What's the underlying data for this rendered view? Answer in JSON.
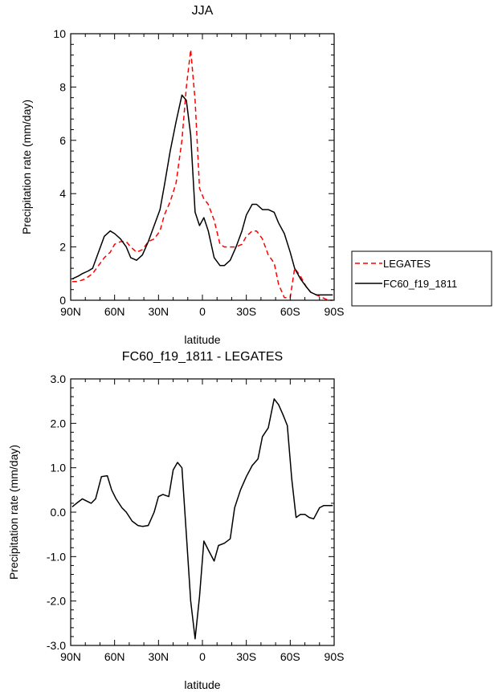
{
  "chart_data": [
    {
      "type": "line",
      "title": "JJA",
      "xlabel": "latitude",
      "ylabel": "Precipitation rate (mm/day)",
      "xlim": [
        90,
        -90
      ],
      "ylim": [
        0,
        10
      ],
      "x_ticks": [
        90,
        60,
        30,
        0,
        -30,
        -60,
        -90
      ],
      "x_tick_labels": [
        "90N",
        "60N",
        "30N",
        "0",
        "30S",
        "60S",
        "90S"
      ],
      "y_ticks": [
        0,
        2,
        4,
        6,
        8,
        10
      ],
      "y_tick_labels": [
        "0",
        "2",
        "4",
        "6",
        "8",
        "10"
      ],
      "legend_placement": "outside-right",
      "series": [
        {
          "name": "LEGATES",
          "color": "#ff0000",
          "dash": true,
          "x": [
            89,
            85,
            80,
            75,
            71,
            67,
            63,
            60,
            56,
            52,
            49,
            45,
            41,
            37,
            33,
            29,
            26,
            22,
            18,
            14,
            11,
            8,
            5,
            2,
            -1,
            -4,
            -8,
            -12,
            -15,
            -19,
            -23,
            -27,
            -30,
            -34,
            -37,
            -41,
            -45,
            -49,
            -52,
            -56,
            -60,
            -63,
            -67,
            -71,
            -74,
            -78,
            -82,
            -86,
            -89
          ],
          "y": [
            0.7,
            0.7,
            0.8,
            1.0,
            1.3,
            1.6,
            1.8,
            2.1,
            2.2,
            2.2,
            2.0,
            1.8,
            1.9,
            2.2,
            2.3,
            2.6,
            3.2,
            3.7,
            4.4,
            6.0,
            8.0,
            9.4,
            7.5,
            4.2,
            3.8,
            3.6,
            3.0,
            2.1,
            2.0,
            2.0,
            2.0,
            2.1,
            2.4,
            2.6,
            2.6,
            2.3,
            1.7,
            1.4,
            0.6,
            0.1,
            0.1,
            1.2,
            0.9,
            0.5,
            0.3,
            0.2,
            0.1,
            0.0,
            0.0
          ]
        },
        {
          "name": "FC60_f19_1811",
          "color": "#000000",
          "dash": false,
          "x": [
            89,
            85,
            82,
            78,
            75,
            71,
            67,
            63,
            60,
            56,
            52,
            49,
            45,
            41,
            37,
            33,
            29,
            26,
            22,
            18,
            14,
            11,
            8,
            5,
            2,
            -1,
            -4,
            -8,
            -12,
            -15,
            -19,
            -23,
            -27,
            -30,
            -34,
            -37,
            -41,
            -45,
            -49,
            -52,
            -56,
            -60,
            -63,
            -67,
            -71,
            -74,
            -78,
            -82,
            -86,
            -89
          ],
          "y": [
            0.8,
            0.9,
            1.0,
            1.1,
            1.2,
            1.8,
            2.4,
            2.6,
            2.5,
            2.3,
            2.0,
            1.6,
            1.5,
            1.7,
            2.2,
            2.8,
            3.4,
            4.3,
            5.6,
            6.7,
            7.7,
            7.5,
            6.2,
            3.3,
            2.8,
            3.1,
            2.6,
            1.6,
            1.3,
            1.3,
            1.5,
            2.0,
            2.6,
            3.2,
            3.6,
            3.6,
            3.4,
            3.4,
            3.3,
            2.9,
            2.5,
            1.8,
            1.2,
            0.8,
            0.5,
            0.3,
            0.2,
            0.2,
            0.2,
            0.2
          ]
        }
      ]
    },
    {
      "type": "line",
      "title": "FC60_f19_1811 - LEGATES",
      "xlabel": "latitude",
      "ylabel": "Precipitation rate (mm/day)",
      "xlim": [
        90,
        -90
      ],
      "ylim": [
        -3,
        3
      ],
      "x_ticks": [
        90,
        60,
        30,
        0,
        -30,
        -60,
        -90
      ],
      "x_tick_labels": [
        "90N",
        "60N",
        "30N",
        "0",
        "30S",
        "60S",
        "90S"
      ],
      "y_ticks": [
        -3,
        -2,
        -1,
        0,
        1,
        2,
        3
      ],
      "y_tick_labels": [
        "-3.0",
        "-2.0",
        "-1.0",
        "0.0",
        "1.0",
        "2.0",
        "3.0"
      ],
      "series": [
        {
          "color": "#000000",
          "dash": false,
          "x": [
            89,
            86,
            82,
            79,
            76,
            73,
            69,
            65,
            62,
            59,
            55,
            52,
            48,
            44,
            41,
            37,
            33,
            30,
            27,
            23,
            20,
            17,
            14,
            11,
            8,
            5,
            2,
            -1,
            -4,
            -8,
            -11,
            -15,
            -19,
            -22,
            -26,
            -30,
            -34,
            -38,
            -41,
            -45,
            -49,
            -52,
            -55,
            -58,
            -61,
            -64,
            -67,
            -70,
            -73,
            -76,
            -80,
            -83,
            -86,
            -89
          ],
          "y": [
            0.12,
            0.2,
            0.3,
            0.25,
            0.2,
            0.3,
            0.8,
            0.82,
            0.5,
            0.3,
            0.1,
            0.0,
            -0.2,
            -0.3,
            -0.32,
            -0.3,
            0.0,
            0.35,
            0.4,
            0.35,
            0.95,
            1.12,
            1.0,
            -0.5,
            -2.0,
            -2.85,
            -1.9,
            -0.65,
            -0.85,
            -1.1,
            -0.75,
            -0.7,
            -0.6,
            0.1,
            0.5,
            0.8,
            1.05,
            1.2,
            1.7,
            1.9,
            2.55,
            2.42,
            2.2,
            1.95,
            0.75,
            -0.12,
            -0.05,
            -0.05,
            -0.12,
            -0.15,
            0.1,
            0.15,
            0.15,
            0.15
          ]
        }
      ]
    }
  ]
}
